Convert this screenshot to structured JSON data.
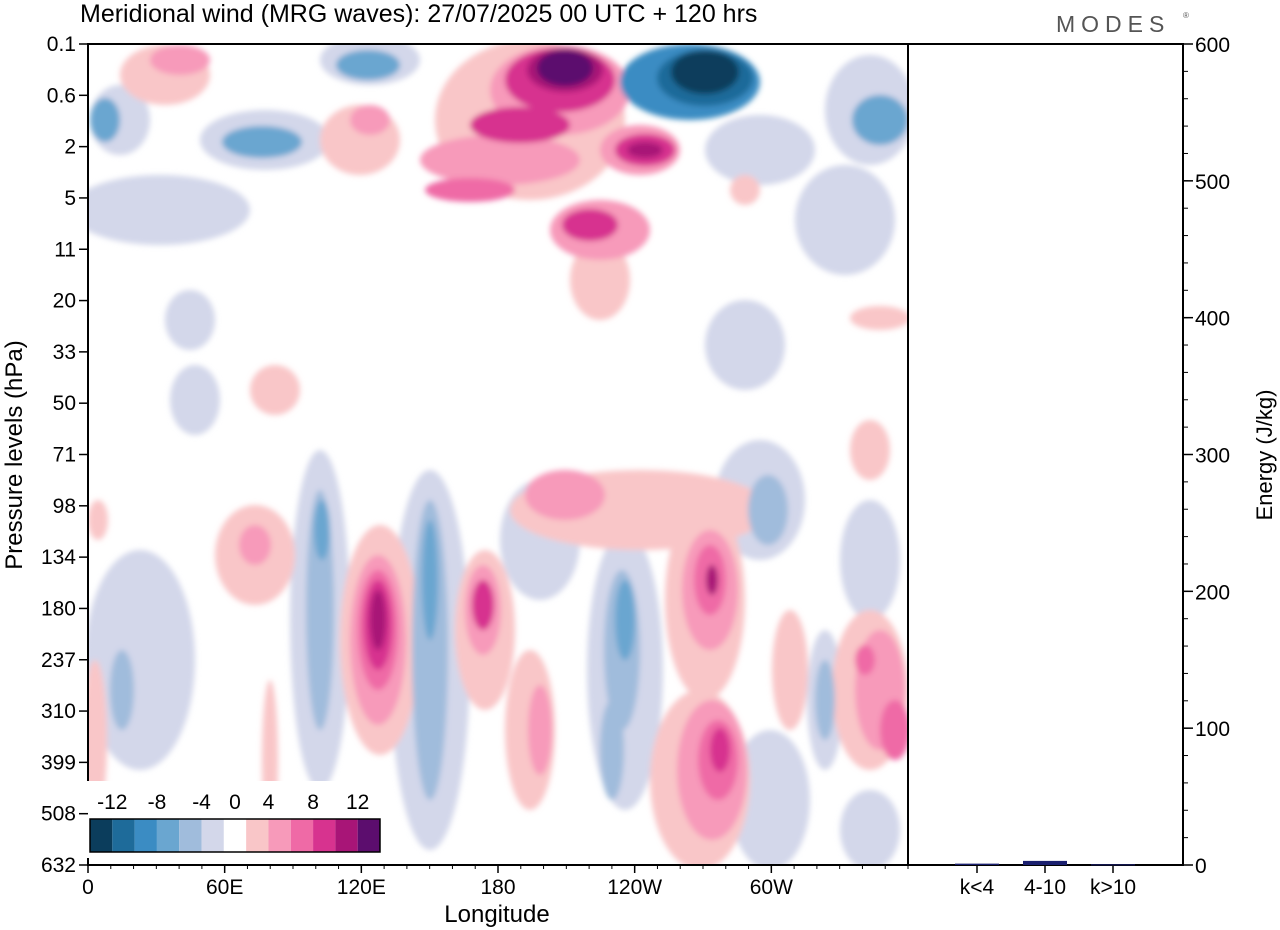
{
  "chart_data": [
    {
      "type": "heatmap",
      "title": "Meridional wind (MRG waves):  27/07/2025  00 UTC  + 120 hrs",
      "xlabel": "Longitude",
      "ylabel": "Pressure levels (hPa)",
      "x_ticks": [
        "0",
        "60E",
        "120E",
        "180",
        "120W",
        "60W"
      ],
      "x_tick_degrees": [
        0,
        60,
        120,
        180,
        240,
        300
      ],
      "xlim": [
        0,
        360
      ],
      "y_ticks": [
        "0.1",
        "0.6",
        "2",
        "5",
        "11",
        "20",
        "33",
        "50",
        "71",
        "98",
        "134",
        "180",
        "237",
        "310",
        "399",
        "508",
        "632"
      ],
      "colorbar": {
        "labels": [
          "-12",
          "-8",
          "-4",
          "0",
          "4",
          "8",
          "12"
        ],
        "bins": [
          -14,
          -12,
          -10,
          -8,
          -6,
          -4,
          -2,
          2,
          4,
          6,
          8,
          10,
          12,
          14
        ],
        "colors": [
          "#0b3d5c",
          "#1e6b9a",
          "#3b8cc3",
          "#6aa6d0",
          "#a0bcdc",
          "#d3d7ea",
          "#ffffff",
          "#f9c6c8",
          "#f79aba",
          "#ef6aa6",
          "#d7338f",
          "#a81577",
          "#5c0d6e"
        ]
      },
      "cells": [
        {
          "lon": 198,
          "level": 1,
          "value": 15
        },
        {
          "lon": 198,
          "level": 2,
          "value": 12
        },
        {
          "lon": 185,
          "level": 3,
          "value": 10
        },
        {
          "lon": 168,
          "level": 4,
          "value": 8
        },
        {
          "lon": 245,
          "level": 3,
          "value": 11
        },
        {
          "lon": 225,
          "level": 6,
          "value": 11
        },
        {
          "lon": 268,
          "level": 1,
          "value": -15
        },
        {
          "lon": 280,
          "level": 2,
          "value": -11
        },
        {
          "lon": 118,
          "level": 12,
          "value": 12
        },
        {
          "lon": 170,
          "level": 12,
          "value": 9
        },
        {
          "lon": 272,
          "level": 12,
          "value": 11
        },
        {
          "lon": 278,
          "level": 15,
          "value": 11
        },
        {
          "lon": 350,
          "level": 14,
          "value": 9
        },
        {
          "lon": 100,
          "level": 10,
          "value": -8
        },
        {
          "lon": 150,
          "level": 12,
          "value": -8
        },
        {
          "lon": 235,
          "level": 12,
          "value": -8
        },
        {
          "lon": 300,
          "level": 10,
          "value": -8
        },
        {
          "lon": 320,
          "level": 14,
          "value": -8
        },
        {
          "lon": 10,
          "level": 3,
          "value": -7
        },
        {
          "lon": 80,
          "level": 3,
          "value": -7
        },
        {
          "lon": 352,
          "level": 3,
          "value": -7
        }
      ]
    },
    {
      "type": "bar",
      "ylabel": "Energy (J/kg)",
      "categories": [
        "k<4",
        "4-10",
        "k>10"
      ],
      "values": [
        1,
        3,
        0.5
      ],
      "ylim": [
        0,
        600
      ],
      "y_ticks": [
        "0",
        "100",
        "200",
        "300",
        "400",
        "500",
        "600"
      ]
    }
  ],
  "logo": "MODES",
  "logo_mark": "®"
}
